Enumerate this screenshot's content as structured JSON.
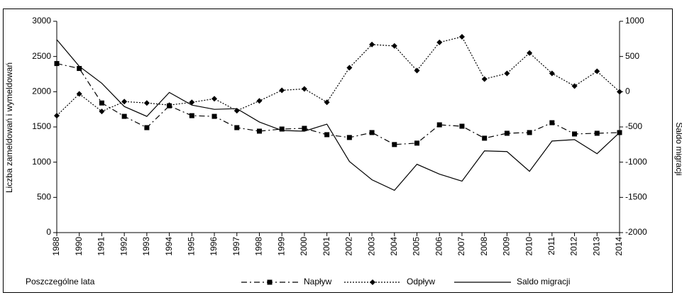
{
  "chart_data": {
    "type": "line",
    "y_label": "Liczba zameldowań i wymeldowań",
    "y2_label": "Saldo migracji",
    "x_label": "Poszczególne lata",
    "categories": [
      "1988",
      "1990",
      "1991",
      "1992",
      "1993",
      "1994",
      "1995",
      "1996",
      "1997",
      "1998",
      "1999",
      "2000",
      "2001",
      "2002",
      "2003",
      "2004",
      "2005",
      "2006",
      "2007",
      "2008",
      "2009",
      "2010",
      "2011",
      "2012",
      "2013",
      "2014"
    ],
    "series": [
      {
        "name": "Napływ",
        "color": "#000000",
        "marker": "square",
        "dash": "8,4,2,4",
        "values": [
          2400,
          2330,
          1840,
          1650,
          1490,
          1800,
          1660,
          1650,
          1490,
          1440,
          1470,
          1480,
          1390,
          1350,
          1420,
          1250,
          1270,
          1530,
          1510,
          1340,
          1410,
          1420,
          1560,
          1400,
          1410,
          1420
        ]
      },
      {
        "name": "Odpływ",
        "color": "#000000",
        "marker": "diamond",
        "dash": "2,2",
        "values": [
          1660,
          1970,
          1720,
          1860,
          1840,
          1810,
          1850,
          1900,
          1730,
          1870,
          2020,
          2040,
          1850,
          2340,
          2670,
          2650,
          2300,
          2700,
          2780,
          2180,
          2260,
          2550,
          2260,
          2080,
          2290,
          2000
        ]
      },
      {
        "name": "Saldo migracji",
        "color": "#000000",
        "marker": "none",
        "dash": "none",
        "axis": "y2",
        "values": [
          740,
          360,
          120,
          -210,
          -350,
          -10,
          -190,
          -250,
          -240,
          -430,
          -550,
          -560,
          -460,
          -990,
          -1250,
          -1400,
          -1030,
          -1170,
          -1270,
          -840,
          -850,
          -1130,
          -700,
          -680,
          -880,
          -580
        ]
      }
    ],
    "ylim": [
      0,
      3000
    ],
    "yticks": [
      0,
      500,
      1000,
      1500,
      2000,
      2500,
      3000
    ],
    "y2lim": [
      -2000,
      1000
    ],
    "y2ticks": [
      -2000,
      -1500,
      -1000,
      -500,
      0,
      500,
      1000
    ]
  }
}
